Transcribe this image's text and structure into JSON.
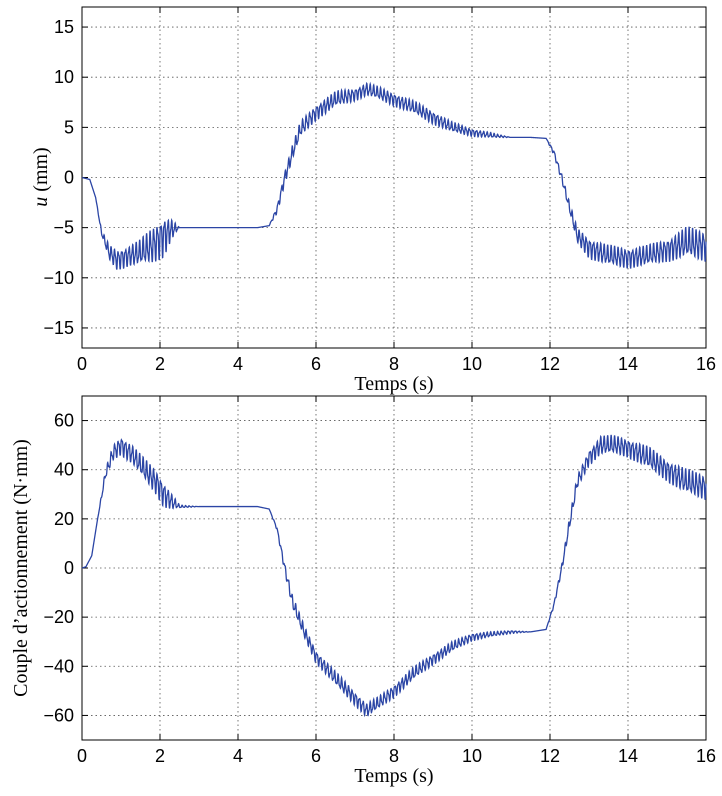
{
  "chart_data": [
    {
      "type": "line",
      "xlabel": "Temps (s)",
      "ylabel_italic": "u",
      "ylabel_rest": " (mm)",
      "xlim": [
        0,
        16
      ],
      "ylim": [
        -17,
        17
      ],
      "xticks": [
        "0",
        "2",
        "4",
        "6",
        "8",
        "10",
        "12",
        "14",
        "16"
      ],
      "yticks": [
        "-15",
        "-10",
        "-5",
        "0",
        "5",
        "10",
        "15"
      ],
      "grid": true,
      "line_color": "#2b45a5",
      "series": [
        {
          "x": [
            0,
            0.2,
            0.35,
            0.5,
            0.7,
            0.9,
            1.2,
            1.5,
            1.8,
            2.1,
            2.3,
            2.5,
            3,
            3.5,
            4,
            4.5,
            4.8,
            5.0,
            5.2,
            5.4,
            5.6,
            6.0,
            6.5,
            7.0,
            7.3,
            7.6,
            8.0,
            8.5,
            9.0,
            9.5,
            10.0,
            10.5,
            11.0,
            11.5,
            11.9,
            12.1,
            12.3,
            12.5,
            12.7,
            13.0,
            13.5,
            14.0,
            14.5,
            15.0,
            15.5,
            16.0
          ],
          "y": [
            0,
            -0.2,
            -2,
            -5.5,
            -7.5,
            -8.2,
            -7.8,
            -7.5,
            -6.8,
            -5.8,
            -5.2,
            -5,
            -5,
            -5,
            -5,
            -5,
            -4.8,
            -3.2,
            0,
            2.5,
            4.8,
            6.5,
            7.8,
            8.3,
            8.8,
            8.4,
            7.8,
            7,
            6,
            5,
            4.5,
            4.2,
            4,
            4,
            3.9,
            2.5,
            0,
            -3,
            -5.8,
            -7,
            -7.8,
            -8,
            -7.8,
            -7.2,
            -6.5,
            -6.8
          ],
          "oscillation": [
            0,
            0,
            0,
            0.2,
            0.6,
            0.8,
            0.8,
            1.0,
            1.4,
            1.6,
            0.8,
            0,
            0,
            0,
            0,
            0,
            0,
            0.3,
            0.5,
            0.6,
            0.6,
            0.6,
            0.6,
            0.5,
            0.5,
            0.5,
            0.5,
            0.5,
            0.5,
            0.4,
            0.3,
            0.2,
            0,
            0,
            0,
            0.2,
            0.3,
            0.4,
            0.6,
            0.8,
            0.8,
            0.8,
            0.8,
            0.9,
            1.2,
            1.2
          ]
        }
      ]
    },
    {
      "type": "line",
      "xlabel": "Temps (s)",
      "ylabel": "Couple d’actionnement (N·mm)",
      "xlim": [
        0,
        16
      ],
      "ylim": [
        -70,
        70
      ],
      "xticks": [
        "0",
        "2",
        "4",
        "6",
        "8",
        "10",
        "12",
        "14",
        "16"
      ],
      "yticks": [
        "-60",
        "-40",
        "-20",
        "0",
        "20",
        "40",
        "60"
      ],
      "grid": true,
      "line_color": "#2b45a5",
      "series": [
        {
          "x": [
            0,
            0.1,
            0.25,
            0.4,
            0.6,
            0.8,
            1.0,
            1.3,
            1.6,
            1.9,
            2.1,
            2.3,
            2.5,
            3,
            3.5,
            4,
            4.5,
            4.8,
            5.0,
            5.2,
            5.4,
            5.7,
            6.0,
            6.5,
            7.0,
            7.3,
            7.6,
            8.0,
            8.5,
            9.0,
            9.5,
            10.0,
            10.5,
            11.0,
            11.5,
            11.9,
            12.1,
            12.3,
            12.5,
            12.7,
            13.0,
            13.3,
            13.7,
            14.0,
            14.5,
            15.0,
            15.5,
            16.0
          ],
          "y": [
            0,
            0.5,
            5,
            20,
            38,
            47,
            50,
            46,
            40,
            35,
            30,
            27,
            25,
            25,
            25,
            25,
            25,
            24,
            16,
            0,
            -14,
            -26,
            -36,
            -45,
            -53,
            -58,
            -55,
            -50,
            -43,
            -37,
            -32,
            -28,
            -27,
            -26,
            -26,
            -25,
            -15,
            0,
            18,
            35,
            45,
            50,
            50,
            49,
            45,
            40,
            35,
            33
          ],
          "oscillation": [
            0,
            0,
            0,
            0,
            1.5,
            2.5,
            3,
            3,
            3.5,
            4,
            4,
            2.5,
            0.5,
            0,
            0,
            0,
            0,
            0,
            0.5,
            1.5,
            2,
            2,
            2,
            2.2,
            2.2,
            2.2,
            2,
            2,
            2,
            1.8,
            1.6,
            1.2,
            0.8,
            0.5,
            0,
            0,
            0.6,
            1.2,
            1.8,
            2,
            2.5,
            3,
            3,
            3,
            3.5,
            3.5,
            4,
            4
          ]
        }
      ]
    }
  ]
}
